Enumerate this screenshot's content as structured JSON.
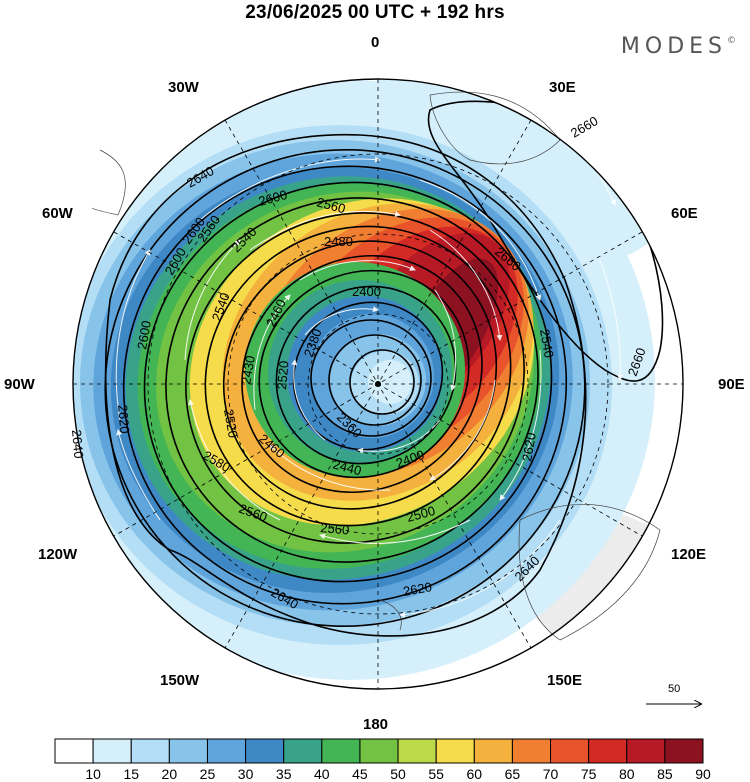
{
  "header": {
    "title": "23/06/2025  00 UTC  + 192 hrs",
    "brand": "MODES",
    "brand_mark": "©"
  },
  "longitude_labels": [
    "0",
    "30E",
    "60E",
    "90E",
    "120E",
    "150E",
    "180",
    "150W",
    "120W",
    "90W",
    "60W",
    "30W"
  ],
  "contour_labels": {
    "outer": [
      "2640",
      "2660",
      "2660",
      "2660",
      "2640",
      "2620",
      "2640",
      "2640",
      "2620",
      "2600",
      "2640"
    ],
    "middle": [
      "2600",
      "2560",
      "2600",
      "2600",
      "2560",
      "2540",
      "2480",
      "2540",
      "2540",
      "2460",
      "2580",
      "2560",
      "2520",
      "2620"
    ],
    "inner": [
      "2400",
      "2380",
      "2360",
      "2440",
      "2480",
      "2460",
      "2430",
      "2520",
      "2400",
      "2500"
    ]
  },
  "wind_reference": {
    "value": "50",
    "icon": "arrow-right-icon"
  },
  "colorbar": {
    "labels": [
      "10",
      "15",
      "20",
      "25",
      "30",
      "35",
      "40",
      "45",
      "50",
      "55",
      "60",
      "65",
      "70",
      "75",
      "80",
      "85",
      "90"
    ],
    "colors": [
      "#ffffff",
      "#d6f0fb",
      "#b3def5",
      "#88c3ea",
      "#5fa5dc",
      "#3f88c6",
      "#39a38a",
      "#43b554",
      "#72c244",
      "#bcd94a",
      "#f6dc4a",
      "#f5b13d",
      "#f07f32",
      "#e8532b",
      "#d42a26",
      "#b81a25",
      "#8d1221"
    ]
  }
}
